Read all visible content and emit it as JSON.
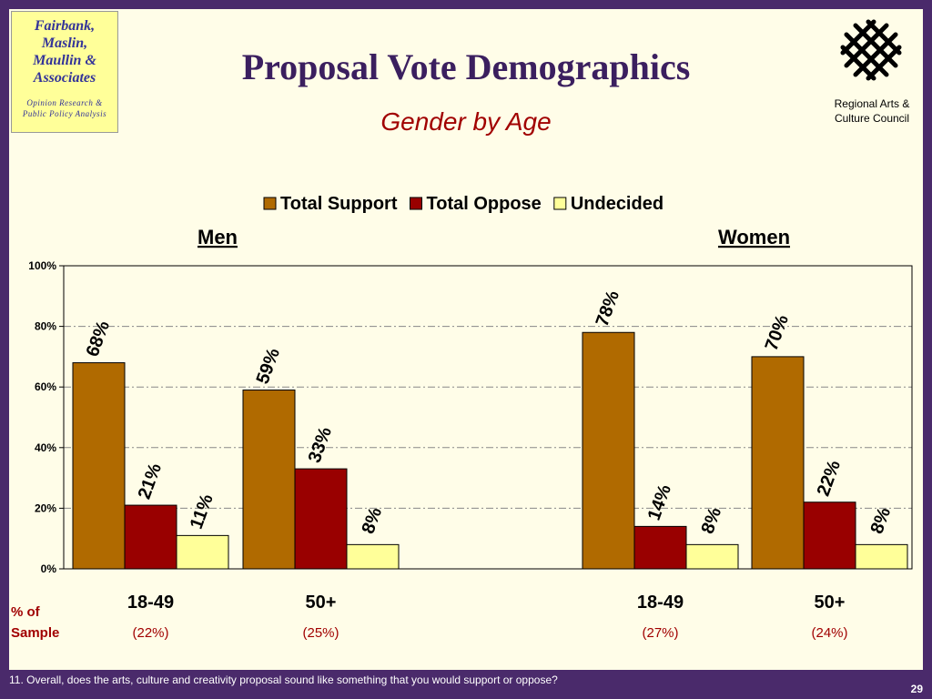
{
  "logo": {
    "lines": [
      "Fairbank,",
      "Maslin,",
      "Maullin &",
      "Associates"
    ],
    "tagline_lines": [
      "Opinion Research &",
      "Public Policy Analysis"
    ]
  },
  "council": {
    "lines": [
      "Regional Arts &",
      "Culture Council"
    ],
    "icon": "woven-lattice-icon"
  },
  "title": "Proposal Vote Demographics",
  "subtitle": "Gender by Age",
  "footnote": "11. Overall, does the arts, culture and creativity proposal sound like something that you would support or oppose?",
  "page_number": "29",
  "sample_label_lines": [
    "% of",
    "Sample"
  ],
  "chart_data": {
    "type": "bar",
    "title": "",
    "xlabel": "",
    "ylabel": "",
    "ylim": [
      0,
      100
    ],
    "y_ticks": [
      "0%",
      "20%",
      "40%",
      "60%",
      "80%",
      "100%"
    ],
    "grid": true,
    "legend_position": "top",
    "groups": [
      {
        "label": "Men",
        "categories": [
          "18-49",
          "50+"
        ],
        "sample": [
          "(22%)",
          "(25%)"
        ]
      },
      {
        "label": "Women",
        "categories": [
          "18-49",
          "50+"
        ],
        "sample": [
          "(27%)",
          "(24%)"
        ]
      }
    ],
    "categories": [
      "18-49",
      "50+",
      "18-49",
      "50+"
    ],
    "series": [
      {
        "name": "Total Support",
        "color": "#b06a00",
        "values": [
          68,
          59,
          78,
          70
        ],
        "labels": [
          "68%",
          "59%",
          "78%",
          "70%"
        ]
      },
      {
        "name": "Total Oppose",
        "color": "#990000",
        "values": [
          21,
          33,
          14,
          22
        ],
        "labels": [
          "21%",
          "33%",
          "14%",
          "22%"
        ]
      },
      {
        "name": "Undecided",
        "color": "#ffff99",
        "values": [
          11,
          8,
          8,
          8
        ],
        "labels": [
          "11%",
          "8%",
          "8%",
          "8%"
        ]
      }
    ]
  }
}
